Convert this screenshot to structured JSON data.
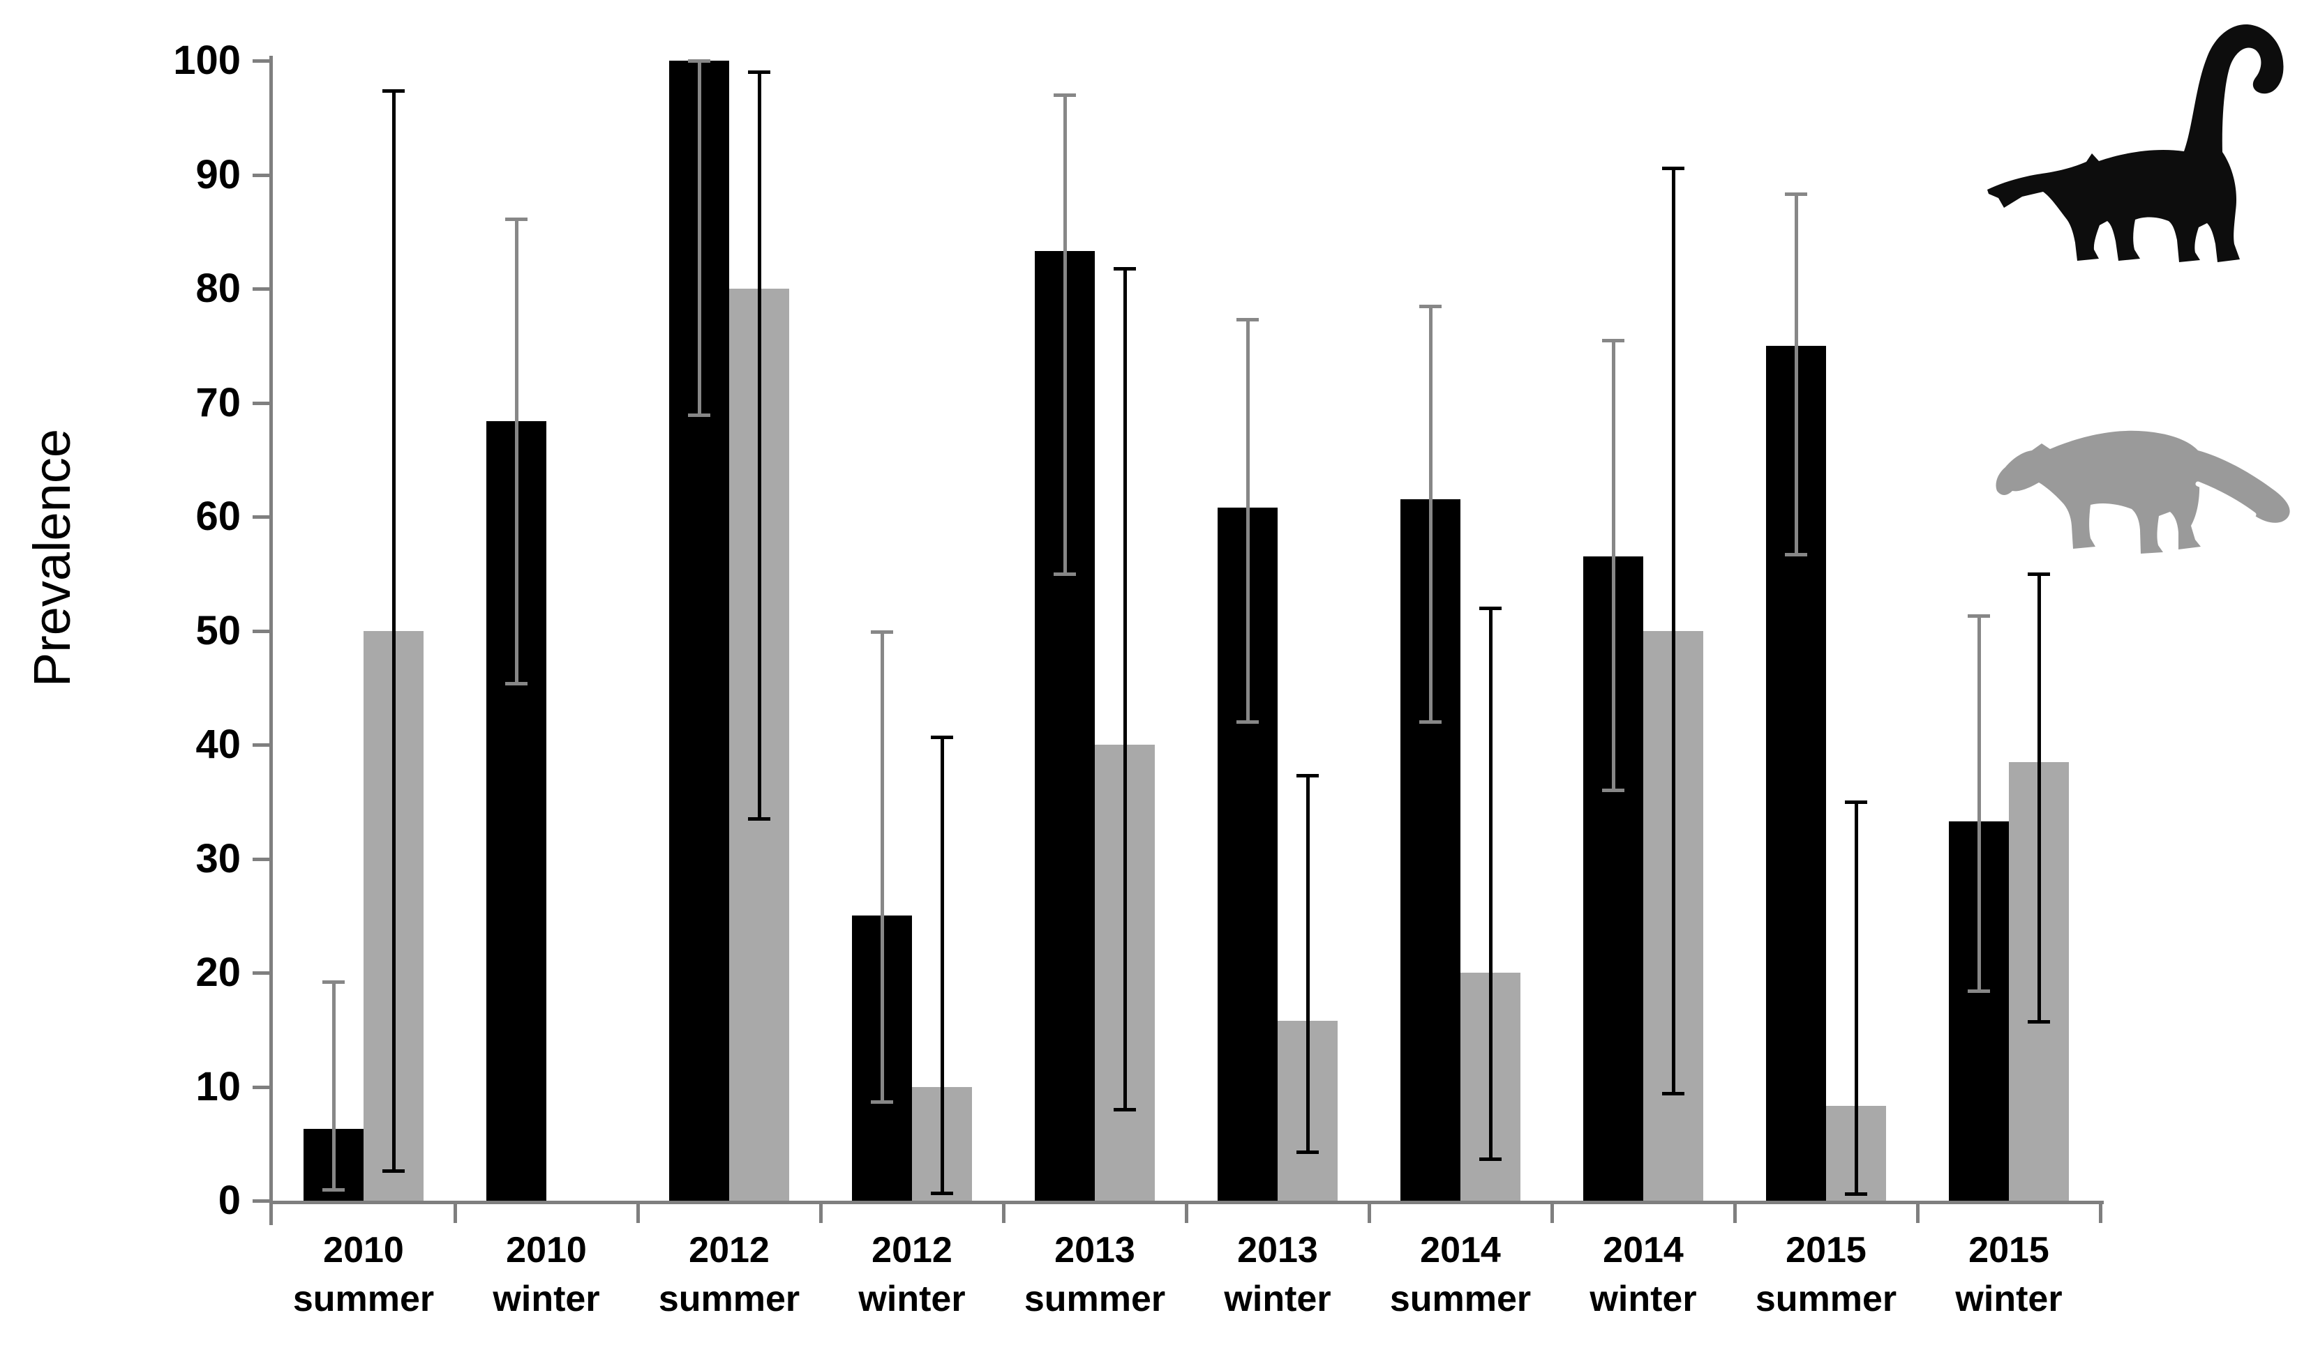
{
  "chart_data": {
    "type": "bar",
    "title": "",
    "ylabel": "Prevalence",
    "xlabel": "",
    "ylim": [
      0,
      100
    ],
    "yticks": [
      0,
      10,
      20,
      30,
      40,
      50,
      60,
      70,
      80,
      90,
      100
    ],
    "ytick_labels": [
      "0",
      "10",
      "20",
      "30",
      "40",
      "50",
      "60",
      "70",
      "80",
      "90",
      "100"
    ],
    "grid": false,
    "axis_color": "#7f7f7f",
    "tick_label_color": "#000000",
    "legend_position": "top-right",
    "categories": [
      {
        "year": "2010",
        "season": "summer"
      },
      {
        "year": "2010",
        "season": "winter"
      },
      {
        "year": "2012",
        "season": "summer"
      },
      {
        "year": "2012",
        "season": "winter"
      },
      {
        "year": "2013",
        "season": "summer"
      },
      {
        "year": "2013",
        "season": "winter"
      },
      {
        "year": "2014",
        "season": "summer"
      },
      {
        "year": "2014",
        "season": "winter"
      },
      {
        "year": "2015",
        "season": "summer"
      },
      {
        "year": "2015",
        "season": "winter"
      }
    ],
    "series": [
      {
        "name": "black bars (coati silhouette legend)",
        "icon": "coati-silhouette-icon",
        "bar_color": "#000000",
        "error_color": "#878787",
        "values": [
          6.3,
          68.4,
          100,
          25,
          83.3,
          60.8,
          61.5,
          56.5,
          75,
          33.3
        ],
        "ci_low": [
          1.0,
          45.4,
          68.9,
          8.7,
          55.0,
          42.0,
          42.0,
          36.0,
          56.7,
          18.4
        ],
        "ci_high": [
          19.2,
          86.1,
          100,
          49.9,
          97.0,
          77.3,
          78.5,
          75.5,
          88.3,
          51.3
        ]
      },
      {
        "name": "gray bars (gray mammal silhouette legend)",
        "icon": "gray-mammal-silhouette-icon",
        "bar_color": "#a9a9a9",
        "error_color": "#000000",
        "values": [
          50,
          null,
          80,
          10,
          40,
          15.8,
          20,
          50,
          8.3,
          38.5
        ],
        "ci_low": [
          2.6,
          null,
          33.5,
          0.7,
          8.0,
          4.3,
          3.7,
          9.4,
          0.6,
          15.7
        ],
        "ci_high": [
          97.4,
          null,
          99.0,
          40.7,
          81.8,
          37.3,
          52.0,
          90.6,
          35.0,
          55.0
        ]
      }
    ],
    "legend": {
      "items": [
        {
          "icon": "coati-silhouette-icon",
          "series": "black bars",
          "color": "#0d0d0d"
        },
        {
          "icon": "gray-mammal-silhouette-icon",
          "series": "gray bars",
          "color": "#9a9a9a"
        }
      ]
    }
  }
}
